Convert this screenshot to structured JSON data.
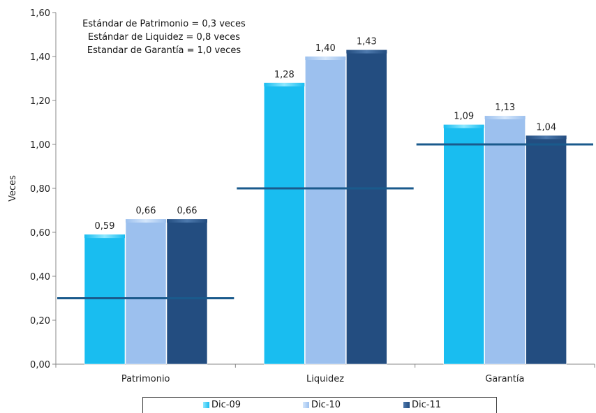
{
  "chart_data": {
    "type": "bar",
    "categories": [
      "Patrimonio",
      "Liquidez",
      "Garantía"
    ],
    "series": [
      {
        "name": "Dic-09",
        "values": [
          0.59,
          1.28,
          1.09
        ],
        "color": "#19bdf0",
        "top_color": "#8ee8ff"
      },
      {
        "name": "Dic-10",
        "values": [
          0.66,
          1.4,
          1.13
        ],
        "color": "#9cc0ee",
        "top_color": "#d4e6fb"
      },
      {
        "name": "Dic-11",
        "values": [
          0.66,
          1.43,
          1.04
        ],
        "color": "#234d80",
        "top_color": "#4d79ad"
      }
    ],
    "data_labels": [
      [
        "0,59",
        "1,28",
        "1,09"
      ],
      [
        "0,66",
        "1,40",
        "1,13"
      ],
      [
        "0,66",
        "1,43",
        "1,04"
      ]
    ],
    "standards": [
      0.3,
      0.8,
      1.0
    ],
    "standard_color": "#1a5a8c",
    "ylabel": "Veces",
    "ylim": [
      0,
      1.6
    ],
    "yticks": [
      0,
      0.2,
      0.4,
      0.6,
      0.8,
      1.0,
      1.2,
      1.4,
      1.6
    ],
    "ytick_labels": [
      "0,00",
      "0,20",
      "0,40",
      "0,60",
      "0,80",
      "1,00",
      "1,20",
      "1,40",
      "1,60"
    ],
    "grid": false,
    "legend_position": "bottom"
  },
  "annotation": {
    "line1": "Estándar de Patrimonio = 0,3 veces",
    "line2": "Estándar de Liquidez = 0,8 veces",
    "line3": "Estandar de Garantía = 1,0 veces"
  }
}
